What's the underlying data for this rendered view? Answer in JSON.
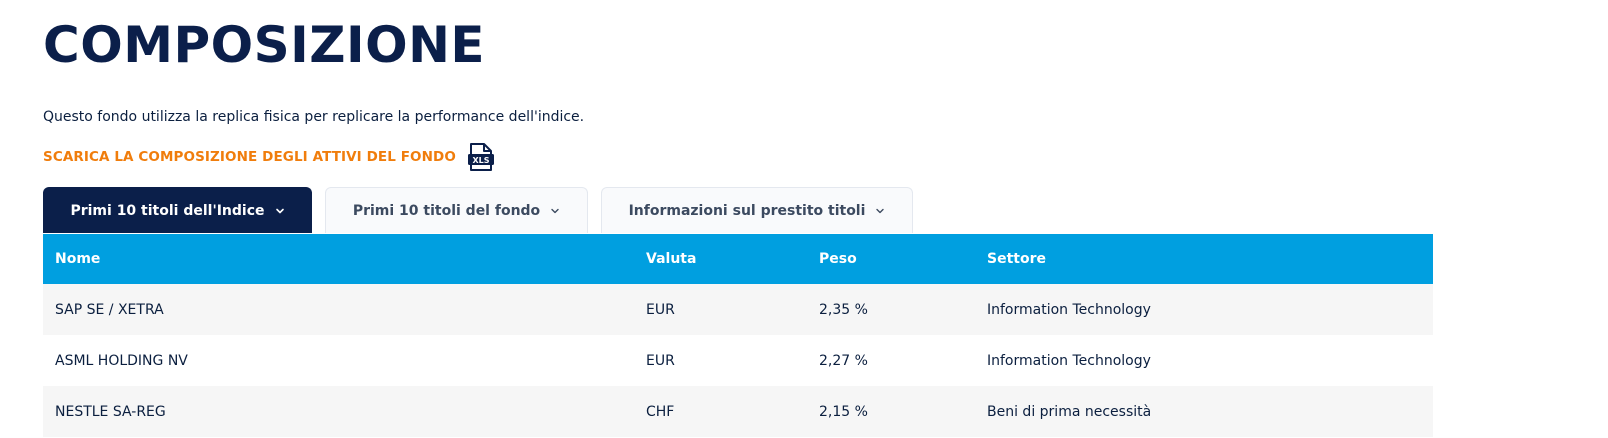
{
  "header": {
    "title": "COMPOSIZIONE",
    "description": "Questo fondo utilizza la replica fisica per replicare la performance dell'indice."
  },
  "download": {
    "label": "SCARICA LA COMPOSIZIONE DEGLI ATTIVI DEL FONDO",
    "icon": "xls-file-icon",
    "icon_text": "XLS"
  },
  "tabs": [
    {
      "label": "Primi 10 titoli dell'Indice",
      "active": true
    },
    {
      "label": "Primi 10 titoli del fondo",
      "active": false
    },
    {
      "label": "Informazioni sul prestito titoli",
      "active": false
    }
  ],
  "table": {
    "columns": [
      "Nome",
      "Valuta",
      "Peso",
      "Settore"
    ],
    "rows": [
      [
        "SAP SE / XETRA",
        "EUR",
        "2,35 %",
        "Information Technology"
      ],
      [
        "ASML HOLDING NV",
        "EUR",
        "2,27 %",
        "Information Technology"
      ],
      [
        "NESTLE SA-REG",
        "CHF",
        "2,15 %",
        "Beni di prima necessità"
      ]
    ]
  },
  "colors": {
    "navy": "#0b1f4a",
    "accent_orange": "#f07d0c",
    "header_blue": "#009fe0",
    "row_alt": "#f6f6f6"
  }
}
